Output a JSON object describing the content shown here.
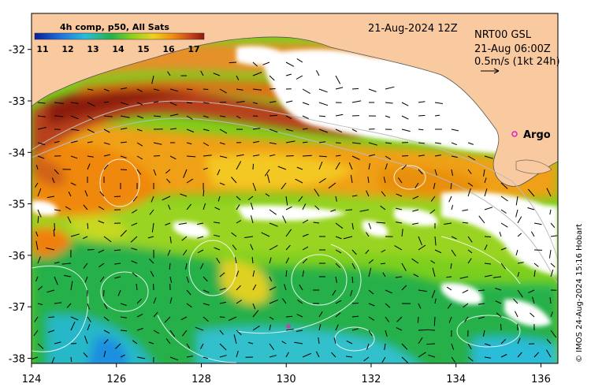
{
  "legend": {
    "title": "4h comp, p50, All Sats",
    "ticks": [
      "11",
      "12",
      "13",
      "14",
      "15",
      "16",
      "17"
    ],
    "colors": [
      "#0a1e96",
      "#1f6fe0",
      "#2bbcd8",
      "#22b14c",
      "#8fd11d",
      "#f0d020",
      "#f08a10",
      "#c8441a",
      "#8b1a10"
    ]
  },
  "header": {
    "date": "21-Aug-2024 12Z",
    "product": "NRT00 GSL",
    "product_time": "21-Aug 06:00Z",
    "scale_note": "0.5m/s (1kt 24h)"
  },
  "labels": {
    "argo": "Argo"
  },
  "credit": "© IMOS 24-Aug-2024 15:16 Hobart",
  "axes": {
    "x_ticks": [
      "124",
      "126",
      "128",
      "130",
      "132",
      "134",
      "136"
    ],
    "y_ticks": [
      "-32",
      "-33",
      "-34",
      "-35",
      "-36",
      "-37",
      "-38"
    ],
    "lon_range": [
      124,
      136.4
    ],
    "lat_range": [
      -38.1,
      -31.3
    ]
  },
  "colors": {
    "land": "#f9c9a0",
    "cloud": "#ffffff",
    "argo_marker": "#e020c0"
  }
}
